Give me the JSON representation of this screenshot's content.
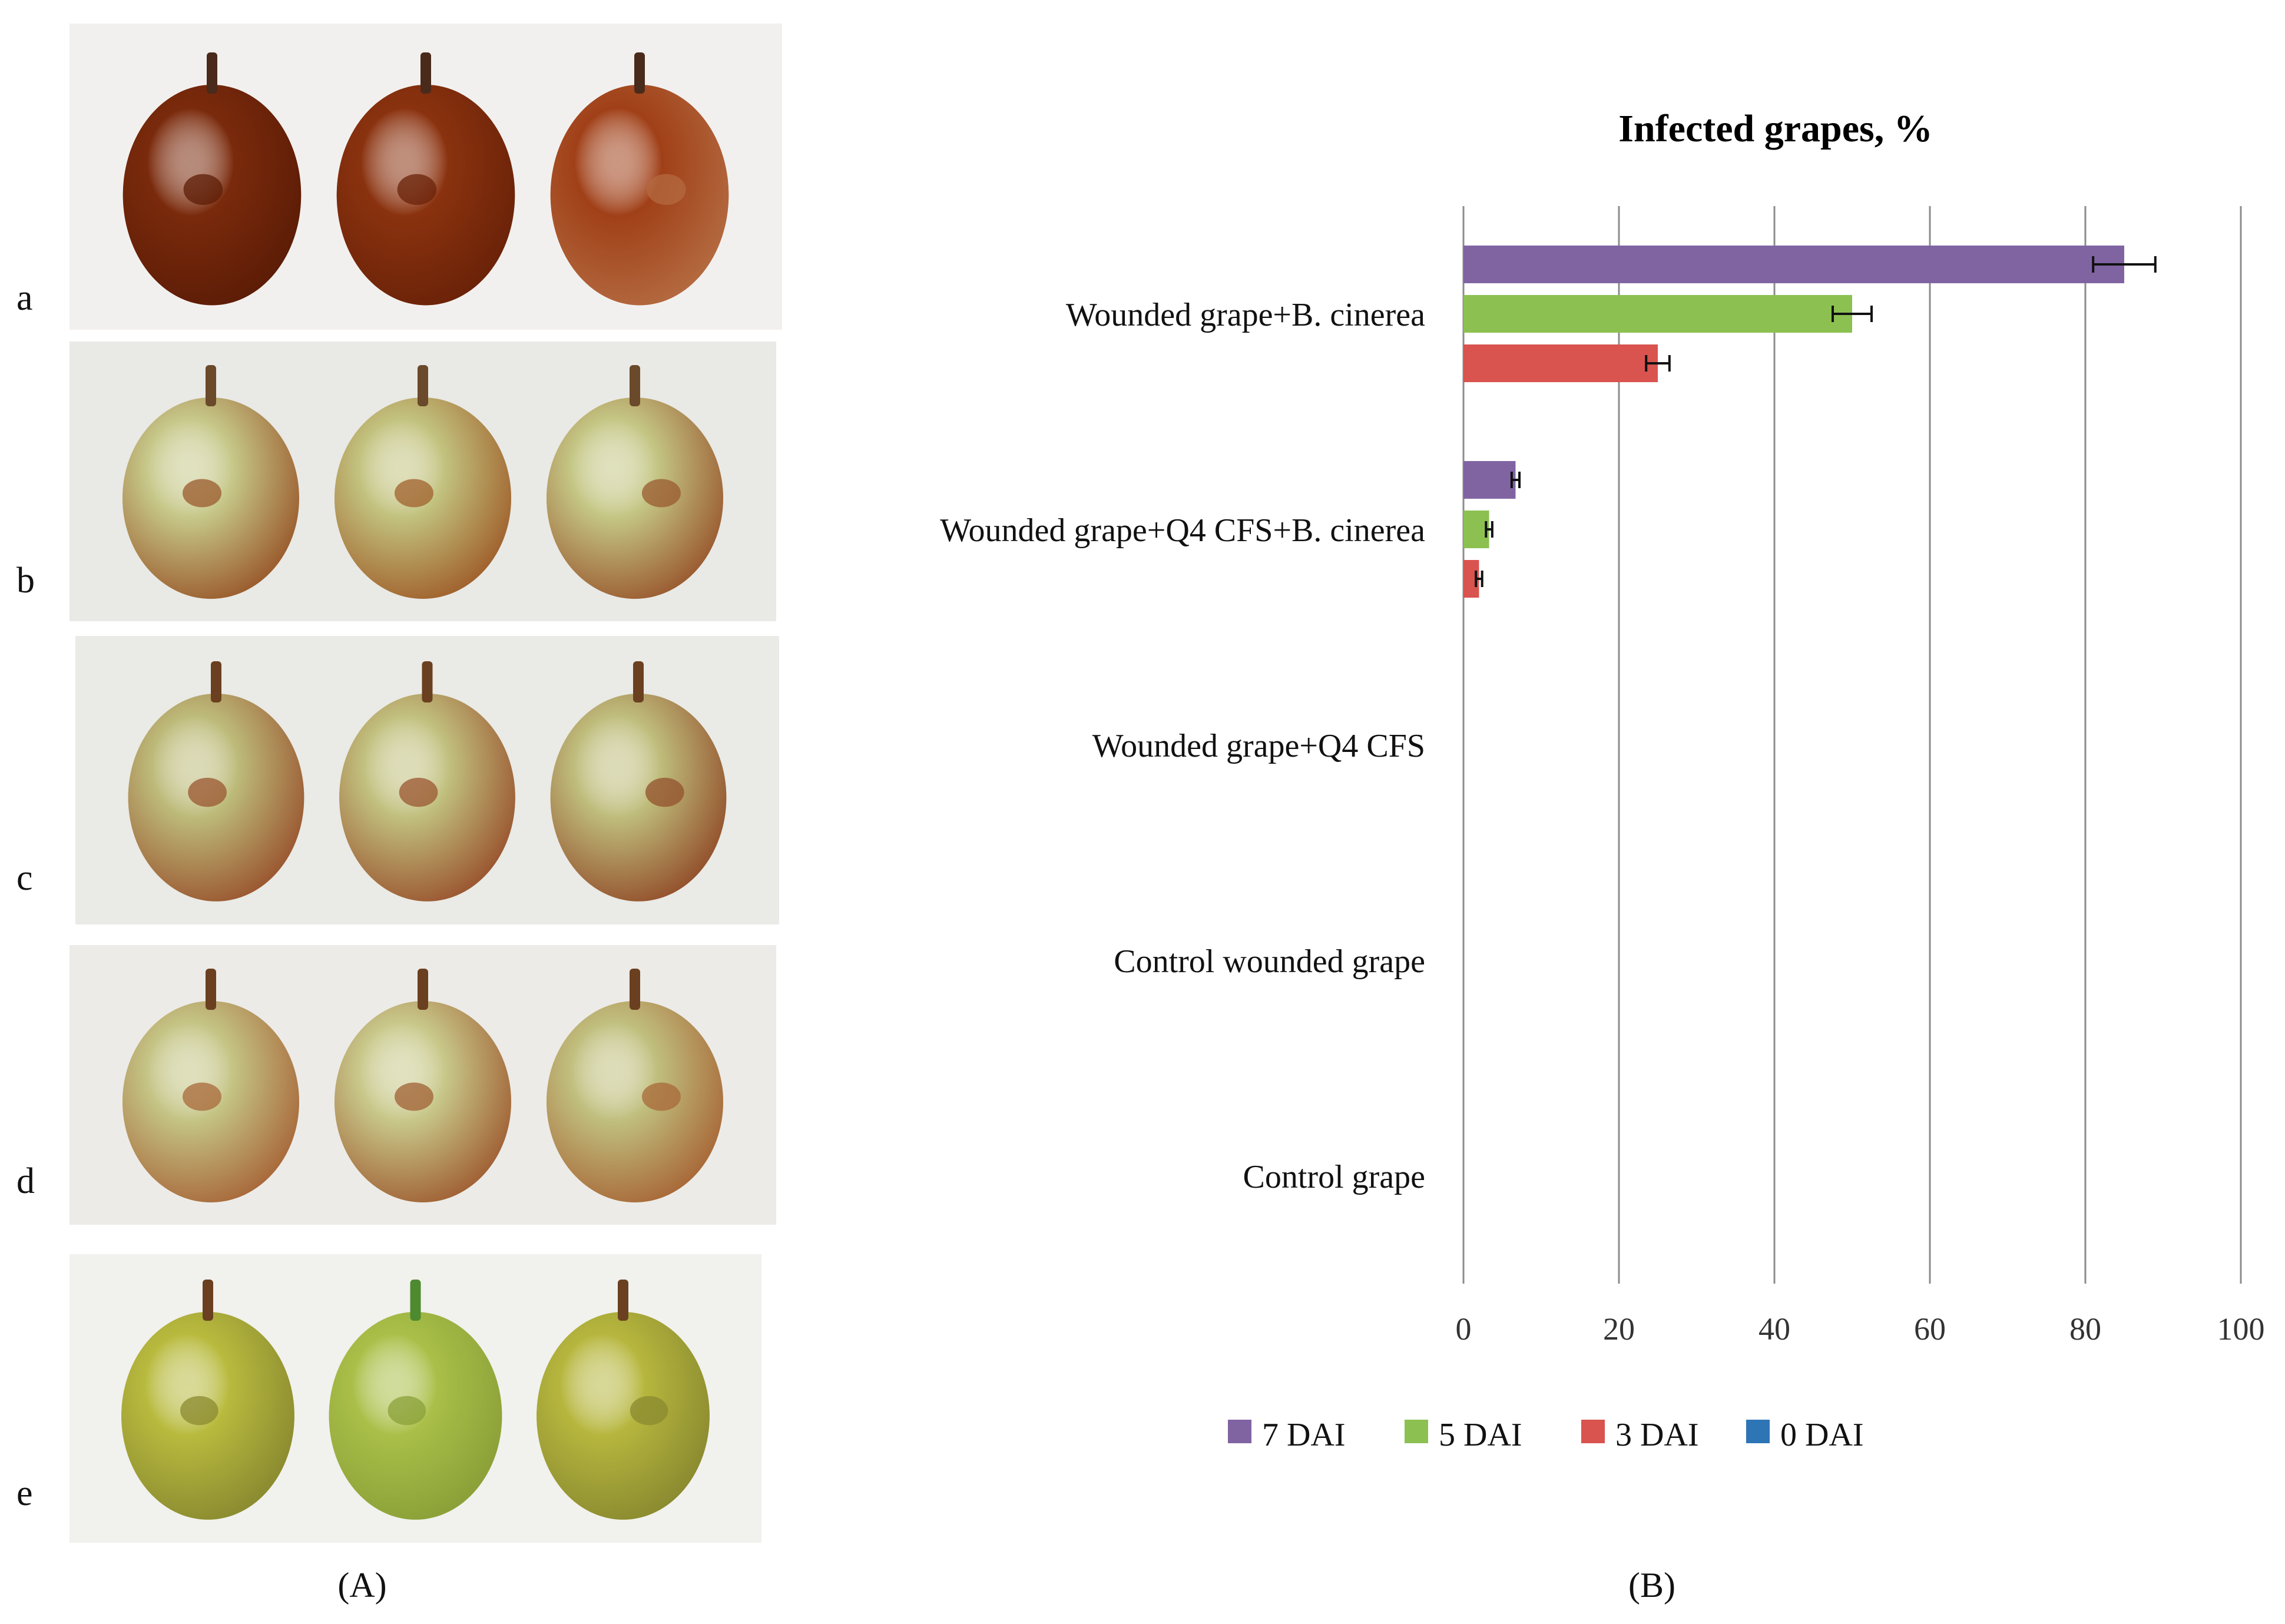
{
  "figure": {
    "panel_a_caption": "(A)",
    "panel_b_caption": "(B)"
  },
  "photo_rows": [
    {
      "letter": "a",
      "bg": "#f2f0ee",
      "grapes": [
        {
          "skin": "#7a2a0c",
          "spot": "#5c1c06",
          "stem": "#4a2a1a"
        },
        {
          "skin": "#8a320f",
          "spot": "#6a2208",
          "stem": "#4a2a1a"
        },
        {
          "skin": "#a04018",
          "spot": "#b46a40",
          "stem": "#4a2a1a"
        }
      ]
    },
    {
      "letter": "b",
      "bg": "#e9e9e6",
      "grapes": [
        {
          "skin": "#c6c889",
          "spot": "#9a5a2c",
          "stem": "#6a4a2a"
        },
        {
          "skin": "#c2c27e",
          "spot": "#a0602c",
          "stem": "#6a4a2a"
        },
        {
          "skin": "#c4c684",
          "spot": "#9a5a30",
          "stem": "#6a4a2a"
        }
      ]
    },
    {
      "letter": "c",
      "bg": "#eaeae6",
      "grapes": [
        {
          "skin": "#bdbb7a",
          "spot": "#9a5630",
          "stem": "#6a4020"
        },
        {
          "skin": "#c1c07e",
          "spot": "#9a5530",
          "stem": "#6a4020"
        },
        {
          "skin": "#bfbd7c",
          "spot": "#93502c",
          "stem": "#6a4020"
        }
      ]
    },
    {
      "letter": "d",
      "bg": "#ecebe8",
      "grapes": [
        {
          "skin": "#c4c485",
          "spot": "#a8683a",
          "stem": "#6a4020"
        },
        {
          "skin": "#c8c88a",
          "spot": "#a06034",
          "stem": "#6a4020"
        },
        {
          "skin": "#c0bf7e",
          "spot": "#a86838",
          "stem": "#6a4020"
        }
      ]
    },
    {
      "letter": "e",
      "bg": "#f1f1ee",
      "grapes": [
        {
          "skin": "#b8ba3e",
          "spot": "#8a8a30",
          "stem": "#6a4020"
        },
        {
          "skin": "#a9bf48",
          "spot": "#8aa038",
          "stem": "#4e8a30"
        },
        {
          "skin": "#b6b63e",
          "spot": "#8a8a30",
          "stem": "#6a4020"
        }
      ]
    }
  ],
  "chart_data": {
    "type": "bar",
    "orientation": "horizontal",
    "title": "Infected grapes, %",
    "xlabel": "",
    "ylabel": "",
    "xlim": [
      0,
      100
    ],
    "xticks": [
      0,
      20,
      40,
      60,
      80,
      100
    ],
    "grid": "vertical",
    "legend_position": "bottom",
    "categories": [
      "Wounded grape+B. cinerea",
      "Wounded grape+Q4 CFS+B. cinerea",
      "Wounded grape+Q4 CFS",
      "Control wounded grape",
      "Control grape"
    ],
    "series": [
      {
        "name": "7 DAI",
        "color": "#8064a2",
        "values": [
          85,
          6.7,
          0,
          0,
          0
        ],
        "errors": [
          4,
          0.5,
          0,
          0,
          0
        ]
      },
      {
        "name": "5 DAI",
        "color": "#8cc152",
        "values": [
          50,
          3.3,
          0,
          0,
          0
        ],
        "errors": [
          2.5,
          0.4,
          0,
          0,
          0
        ]
      },
      {
        "name": "3 DAI",
        "color": "#d9534f",
        "values": [
          25,
          2,
          0,
          0,
          0
        ],
        "errors": [
          1.5,
          0.4,
          0,
          0,
          0
        ]
      },
      {
        "name": "0 DAI",
        "color": "#2e75b6",
        "values": [
          0,
          0,
          0,
          0,
          0
        ],
        "errors": [
          0,
          0,
          0,
          0,
          0
        ]
      }
    ]
  }
}
